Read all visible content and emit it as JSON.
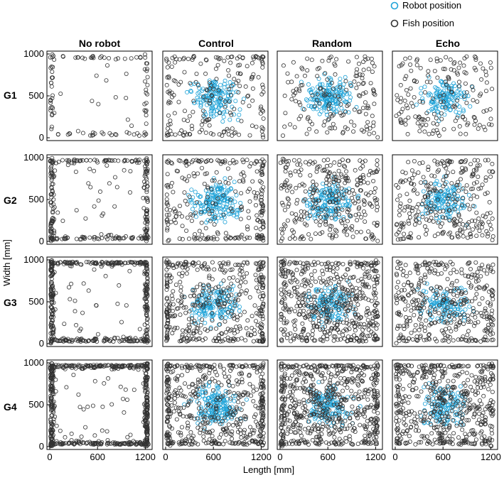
{
  "chart_data": {
    "type": "scatter",
    "figure": "grid",
    "columns": [
      "No robot",
      "Control",
      "Random",
      "Echo"
    ],
    "rows": [
      "G1",
      "G2",
      "G3",
      "G4"
    ],
    "xlabel": "Length [mm]",
    "ylabel": "Width [mm]",
    "xlim": [
      0,
      1250
    ],
    "ylim": [
      0,
      1000
    ],
    "xticks": [
      0,
      600,
      1200
    ],
    "yticks": [
      0,
      500,
      1000
    ],
    "legend": {
      "placement": "top-right",
      "entries": [
        {
          "name": "Robot position",
          "color": "#1fa3d8"
        },
        {
          "name": "Fish position",
          "color": "#333333"
        }
      ]
    },
    "series": [
      {
        "name": "Robot position",
        "color": "#1fa3d8",
        "marker": "open-circle"
      },
      {
        "name": "Fish position",
        "color": "#333333",
        "marker": "open-circle"
      }
    ],
    "panels": [
      {
        "row": "G1",
        "col": "No robot",
        "fish_n": 110,
        "fish_wall": 0.85,
        "robot_n": 0
      },
      {
        "row": "G1",
        "col": "Control",
        "fish_n": 200,
        "fish_wall": 0.35,
        "robot_n": 150
      },
      {
        "row": "G1",
        "col": "Random",
        "fish_n": 160,
        "fish_wall": 0.05,
        "robot_n": 160
      },
      {
        "row": "G1",
        "col": "Echo",
        "fish_n": 170,
        "fish_wall": 0.05,
        "robot_n": 130
      },
      {
        "row": "G2",
        "col": "No robot",
        "fish_n": 280,
        "fish_wall": 0.9,
        "robot_n": 0
      },
      {
        "row": "G2",
        "col": "Control",
        "fish_n": 260,
        "fish_wall": 0.45,
        "robot_n": 170
      },
      {
        "row": "G2",
        "col": "Random",
        "fish_n": 300,
        "fish_wall": 0.15,
        "robot_n": 150
      },
      {
        "row": "G2",
        "col": "Echo",
        "fish_n": 280,
        "fish_wall": 0.12,
        "robot_n": 130
      },
      {
        "row": "G3",
        "col": "No robot",
        "fish_n": 420,
        "fish_wall": 0.92,
        "robot_n": 0
      },
      {
        "row": "G3",
        "col": "Control",
        "fish_n": 420,
        "fish_wall": 0.45,
        "robot_n": 150
      },
      {
        "row": "G3",
        "col": "Random",
        "fish_n": 520,
        "fish_wall": 0.25,
        "robot_n": 130
      },
      {
        "row": "G3",
        "col": "Echo",
        "fish_n": 380,
        "fish_wall": 0.2,
        "robot_n": 110
      },
      {
        "row": "G4",
        "col": "No robot",
        "fish_n": 560,
        "fish_wall": 0.93,
        "robot_n": 0
      },
      {
        "row": "G4",
        "col": "Control",
        "fish_n": 520,
        "fish_wall": 0.45,
        "robot_n": 170
      },
      {
        "row": "G4",
        "col": "Random",
        "fish_n": 640,
        "fish_wall": 0.3,
        "robot_n": 130
      },
      {
        "row": "G4",
        "col": "Echo",
        "fish_n": 520,
        "fish_wall": 0.25,
        "robot_n": 120
      }
    ]
  }
}
